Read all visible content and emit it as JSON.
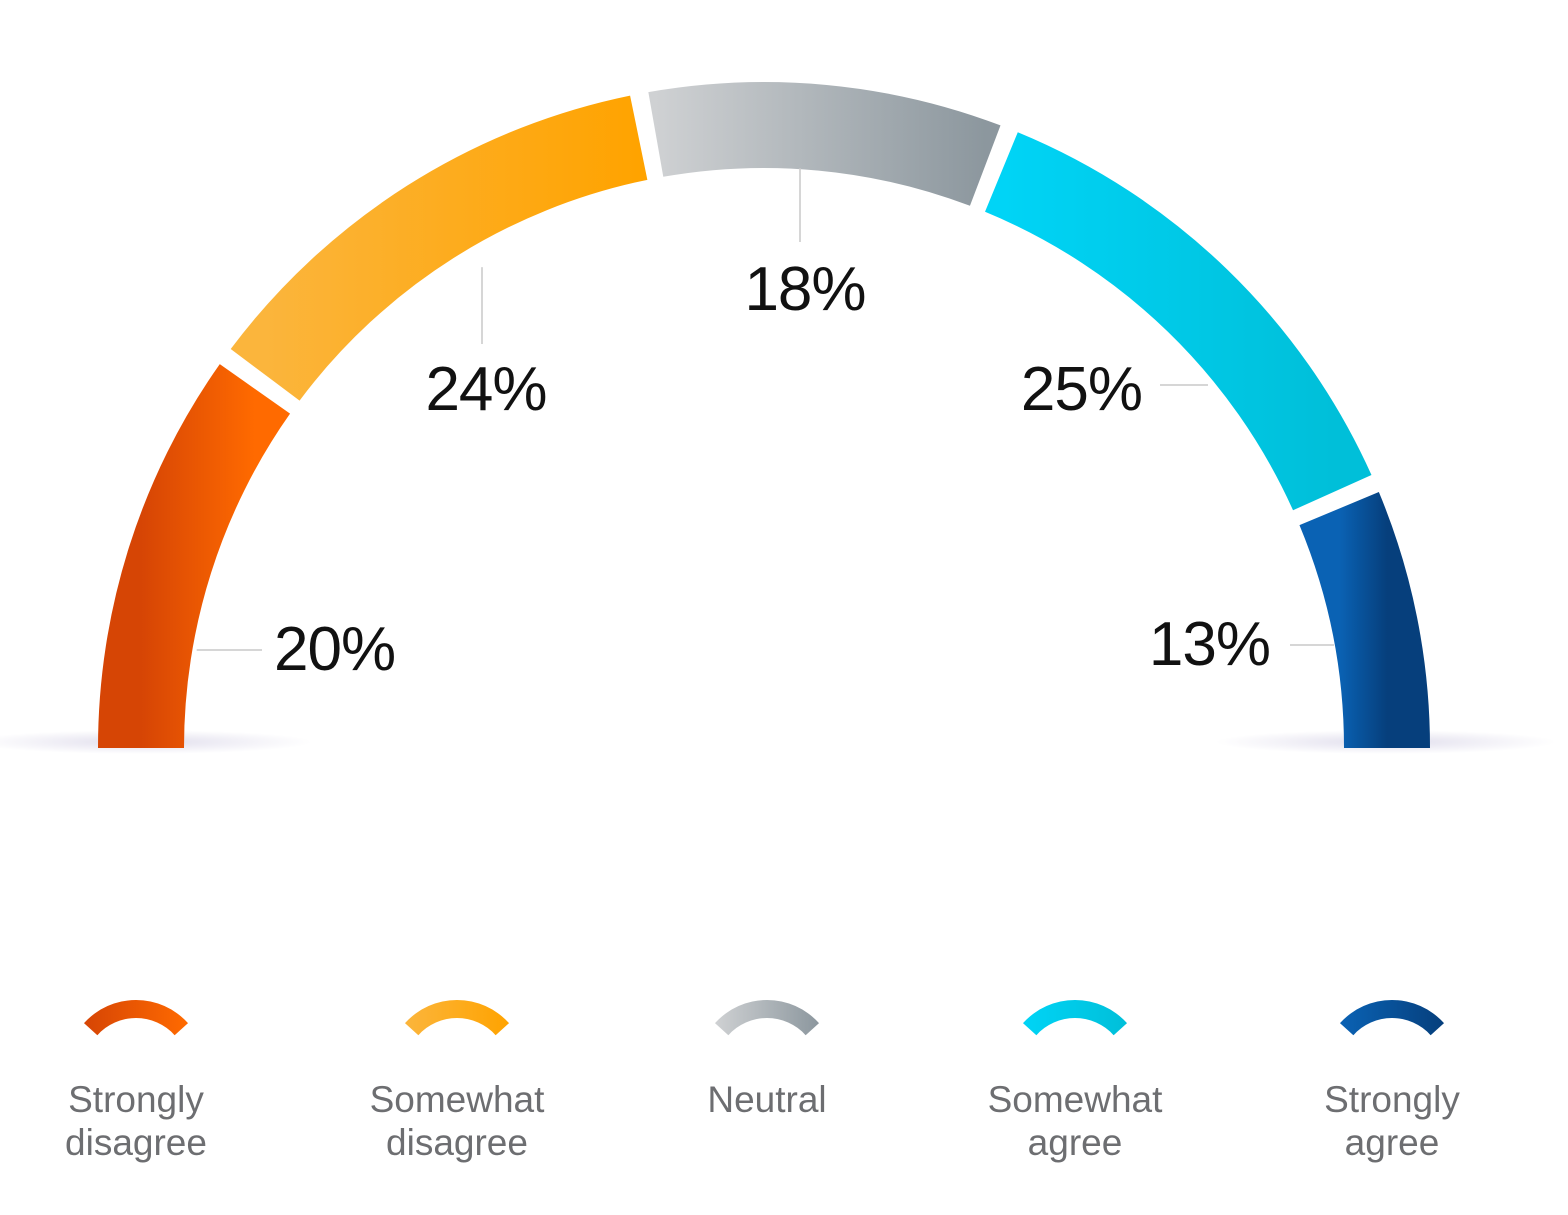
{
  "chart_data": {
    "type": "gauge",
    "value_suffix": "%",
    "categories": [
      "Strongly disagree",
      "Somewhat disagree",
      "Neutral",
      "Somewhat agree",
      "Strongly agree"
    ],
    "values": [
      20,
      24,
      18,
      25,
      13
    ],
    "value_labels": [
      "20%",
      "24%",
      "18%",
      "25%",
      "13%"
    ],
    "legend_labels": [
      [
        "Strongly",
        "disagree"
      ],
      [
        "Somewhat",
        "disagree"
      ],
      [
        "Neutral"
      ],
      [
        "Somewhat",
        "agree"
      ],
      [
        "Strongly",
        "agree"
      ]
    ],
    "colors": [
      [
        "#d64505",
        "#ff6a00"
      ],
      [
        "#fbb53c",
        "#ffa300"
      ],
      [
        "#cfd1d3",
        "#8c979e"
      ],
      [
        "#00d4f6",
        "#00bfd9"
      ],
      [
        "#0a62b4",
        "#063f7c"
      ]
    ],
    "legend_placement": "bottom"
  }
}
